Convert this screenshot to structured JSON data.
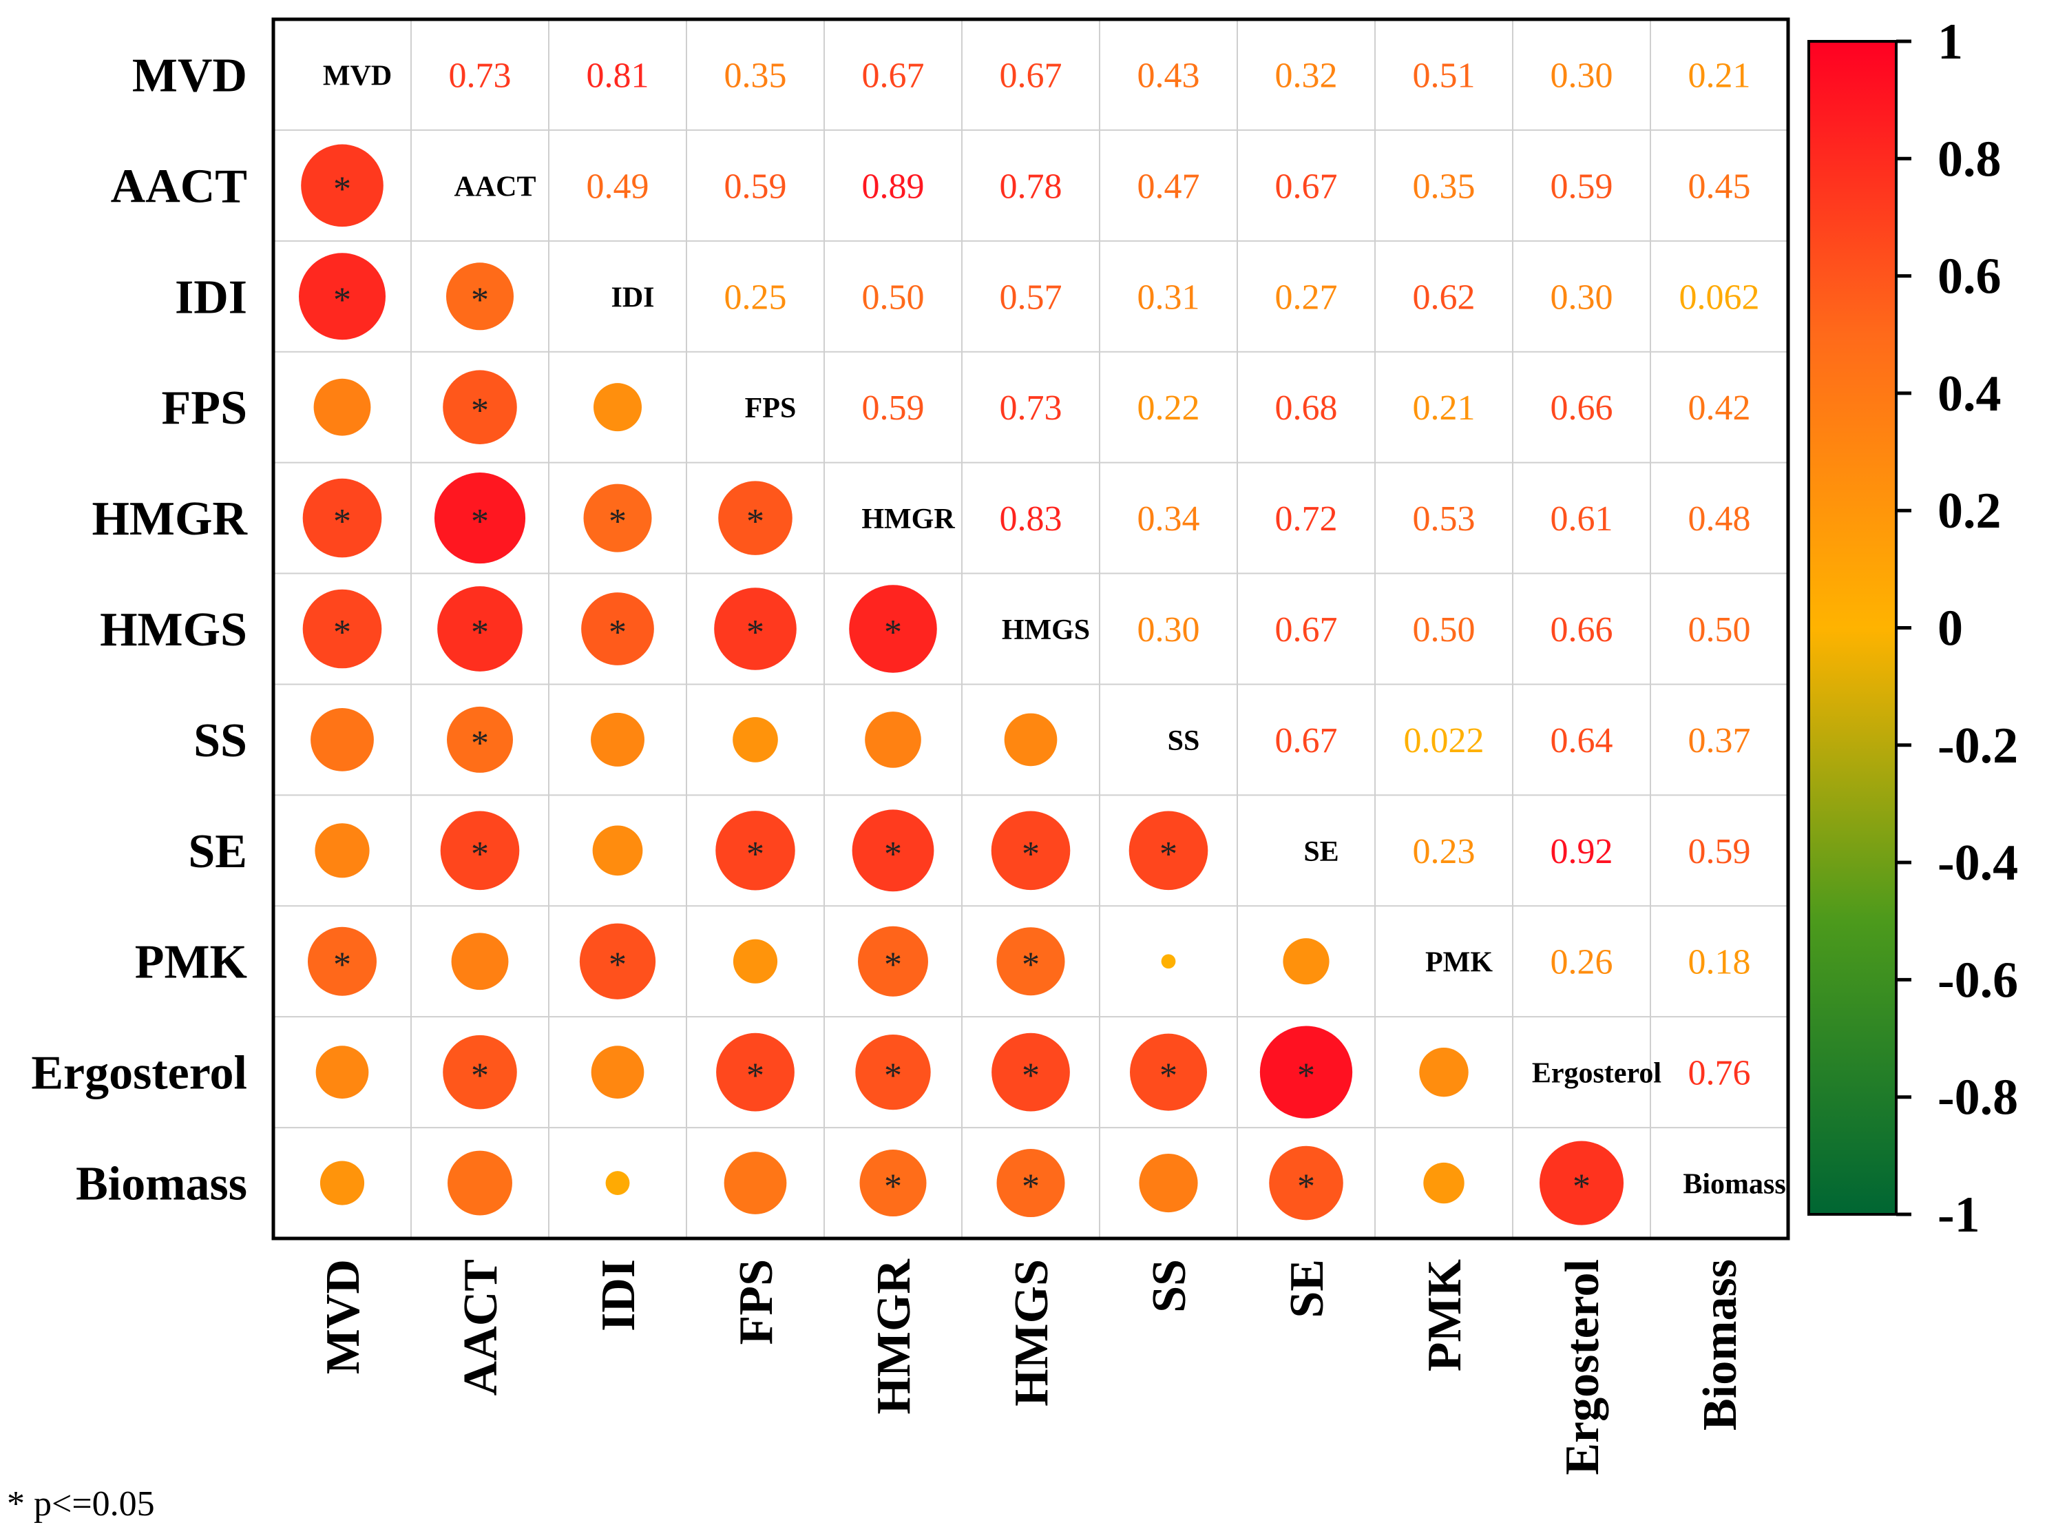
{
  "chart_data": {
    "type": "heatmap",
    "subtype": "correlation-matrix",
    "variables": [
      "MVD",
      "AACT",
      "IDI",
      "FPS",
      "HMGR",
      "HMGS",
      "SS",
      "SE",
      "PMK",
      "Ergosterol",
      "Biomass"
    ],
    "upper_triangle_labels": [
      [
        "MVD",
        "0.73",
        "0.81",
        "0.35",
        "0.67",
        "0.67",
        "0.43",
        "0.32",
        "0.51",
        "0.30",
        "0.21"
      ],
      [
        "",
        "AACT",
        "0.49",
        "0.59",
        "0.89",
        "0.78",
        "0.47",
        "0.67",
        "0.35",
        "0.59",
        "0.45"
      ],
      [
        "",
        "",
        "IDI",
        "0.25",
        "0.50",
        "0.57",
        "0.31",
        "0.27",
        "0.62",
        "0.30",
        "0.062"
      ],
      [
        "",
        "",
        "",
        "FPS",
        "0.59",
        "0.73",
        "0.22",
        "0.68",
        "0.21",
        "0.66",
        "0.42"
      ],
      [
        "",
        "",
        "",
        "",
        "HMGR",
        "0.83",
        "0.34",
        "0.72",
        "0.53",
        "0.61",
        "0.48"
      ],
      [
        "",
        "",
        "",
        "",
        "",
        "HMGS",
        "0.30",
        "0.67",
        "0.50",
        "0.66",
        "0.50"
      ],
      [
        "",
        "",
        "",
        "",
        "",
        "",
        "SS",
        "0.67",
        "0.022",
        "0.64",
        "0.37"
      ],
      [
        "",
        "",
        "",
        "",
        "",
        "",
        "",
        "SE",
        "0.23",
        "0.92",
        "0.59"
      ],
      [
        "",
        "",
        "",
        "",
        "",
        "",
        "",
        "",
        "PMK",
        "0.26",
        "0.18"
      ],
      [
        "",
        "",
        "",
        "",
        "",
        "",
        "",
        "",
        "",
        "Ergosterol",
        "0.76"
      ],
      [
        "",
        "",
        "",
        "",
        "",
        "",
        "",
        "",
        "",
        "",
        "Biomass"
      ]
    ],
    "correlations": [
      [
        1,
        0.73,
        0.81,
        0.35,
        0.67,
        0.67,
        0.43,
        0.32,
        0.51,
        0.3,
        0.21
      ],
      [
        0.73,
        1,
        0.49,
        0.59,
        0.89,
        0.78,
        0.47,
        0.67,
        0.35,
        0.59,
        0.45
      ],
      [
        0.81,
        0.49,
        1,
        0.25,
        0.5,
        0.57,
        0.31,
        0.27,
        0.62,
        0.3,
        0.062
      ],
      [
        0.35,
        0.59,
        0.25,
        1,
        0.59,
        0.73,
        0.22,
        0.68,
        0.21,
        0.66,
        0.42
      ],
      [
        0.67,
        0.89,
        0.5,
        0.59,
        1,
        0.83,
        0.34,
        0.72,
        0.53,
        0.61,
        0.48
      ],
      [
        0.67,
        0.78,
        0.57,
        0.73,
        0.83,
        1,
        0.3,
        0.67,
        0.5,
        0.66,
        0.5
      ],
      [
        0.43,
        0.47,
        0.31,
        0.22,
        0.34,
        0.3,
        1,
        0.67,
        0.022,
        0.64,
        0.37
      ],
      [
        0.32,
        0.67,
        0.27,
        0.68,
        0.72,
        0.67,
        0.67,
        1,
        0.23,
        0.92,
        0.59
      ],
      [
        0.51,
        0.35,
        0.62,
        0.21,
        0.53,
        0.5,
        0.022,
        0.23,
        1,
        0.26,
        0.18
      ],
      [
        0.3,
        0.59,
        0.3,
        0.66,
        0.61,
        0.66,
        0.64,
        0.92,
        0.26,
        1,
        0.76
      ],
      [
        0.21,
        0.45,
        0.062,
        0.42,
        0.48,
        0.5,
        0.37,
        0.59,
        0.18,
        0.76,
        1
      ]
    ],
    "significance_marker": "*",
    "significant_pairs_lower": [
      [
        1,
        0
      ],
      [
        2,
        0
      ],
      [
        2,
        1
      ],
      [
        3,
        1
      ],
      [
        4,
        0
      ],
      [
        4,
        1
      ],
      [
        4,
        2
      ],
      [
        4,
        3
      ],
      [
        5,
        0
      ],
      [
        5,
        1
      ],
      [
        5,
        2
      ],
      [
        5,
        3
      ],
      [
        5,
        4
      ],
      [
        6,
        1
      ],
      [
        7,
        1
      ],
      [
        7,
        3
      ],
      [
        7,
        4
      ],
      [
        7,
        5
      ],
      [
        7,
        6
      ],
      [
        8,
        0
      ],
      [
        8,
        2
      ],
      [
        8,
        4
      ],
      [
        8,
        5
      ],
      [
        9,
        1
      ],
      [
        9,
        3
      ],
      [
        9,
        4
      ],
      [
        9,
        5
      ],
      [
        9,
        6
      ],
      [
        9,
        7
      ],
      [
        10,
        4
      ],
      [
        10,
        5
      ],
      [
        10,
        7
      ],
      [
        10,
        9
      ]
    ],
    "colorbar": {
      "range": [
        -1,
        1
      ],
      "ticks": [
        "1",
        "0.8",
        "0.6",
        "0.4",
        "0.2",
        "0",
        "-0.2",
        "-0.4",
        "-0.6",
        "-0.8",
        "-1"
      ],
      "colors": [
        "#006633",
        "#FFB300",
        "#FF0022"
      ]
    },
    "footnote": "* p<=0.05"
  }
}
